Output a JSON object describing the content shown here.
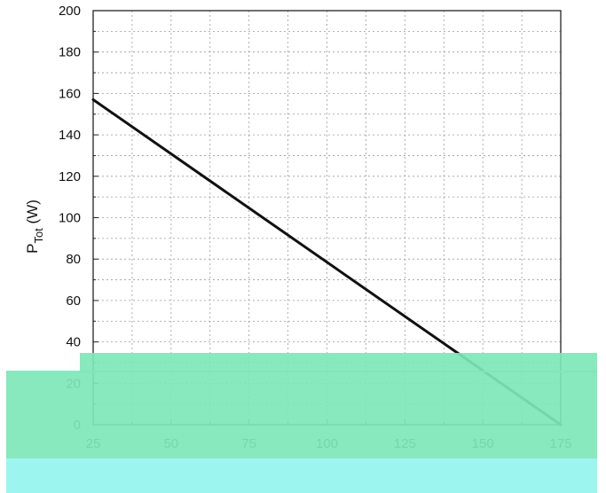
{
  "chart_data": {
    "type": "line",
    "title": "",
    "xlabel": "",
    "ylabel_main": "P",
    "ylabel_sub": "Tot",
    "ylabel_unit": " (W)",
    "xlim": [
      25,
      175
    ],
    "ylim": [
      0,
      200
    ],
    "x_ticks": [
      25,
      50,
      75,
      100,
      125,
      150,
      175
    ],
    "x_tick_labels": [
      "25",
      "50",
      "75",
      "100",
      "125",
      "150",
      "175"
    ],
    "y_ticks": [
      0,
      20,
      40,
      60,
      80,
      100,
      120,
      140,
      160,
      180,
      200
    ],
    "y_tick_labels": [
      "0",
      "20",
      "40",
      "60",
      "80",
      "100",
      "120",
      "140",
      "160",
      "180",
      "200"
    ],
    "grid": true,
    "series": [
      {
        "x": [
          25,
          175
        ],
        "y": [
          157,
          0
        ],
        "color": "#111111"
      }
    ]
  },
  "colors": {
    "overlay_green": "#7ee6b8",
    "overlay_cyan": "#9cf5ef"
  }
}
